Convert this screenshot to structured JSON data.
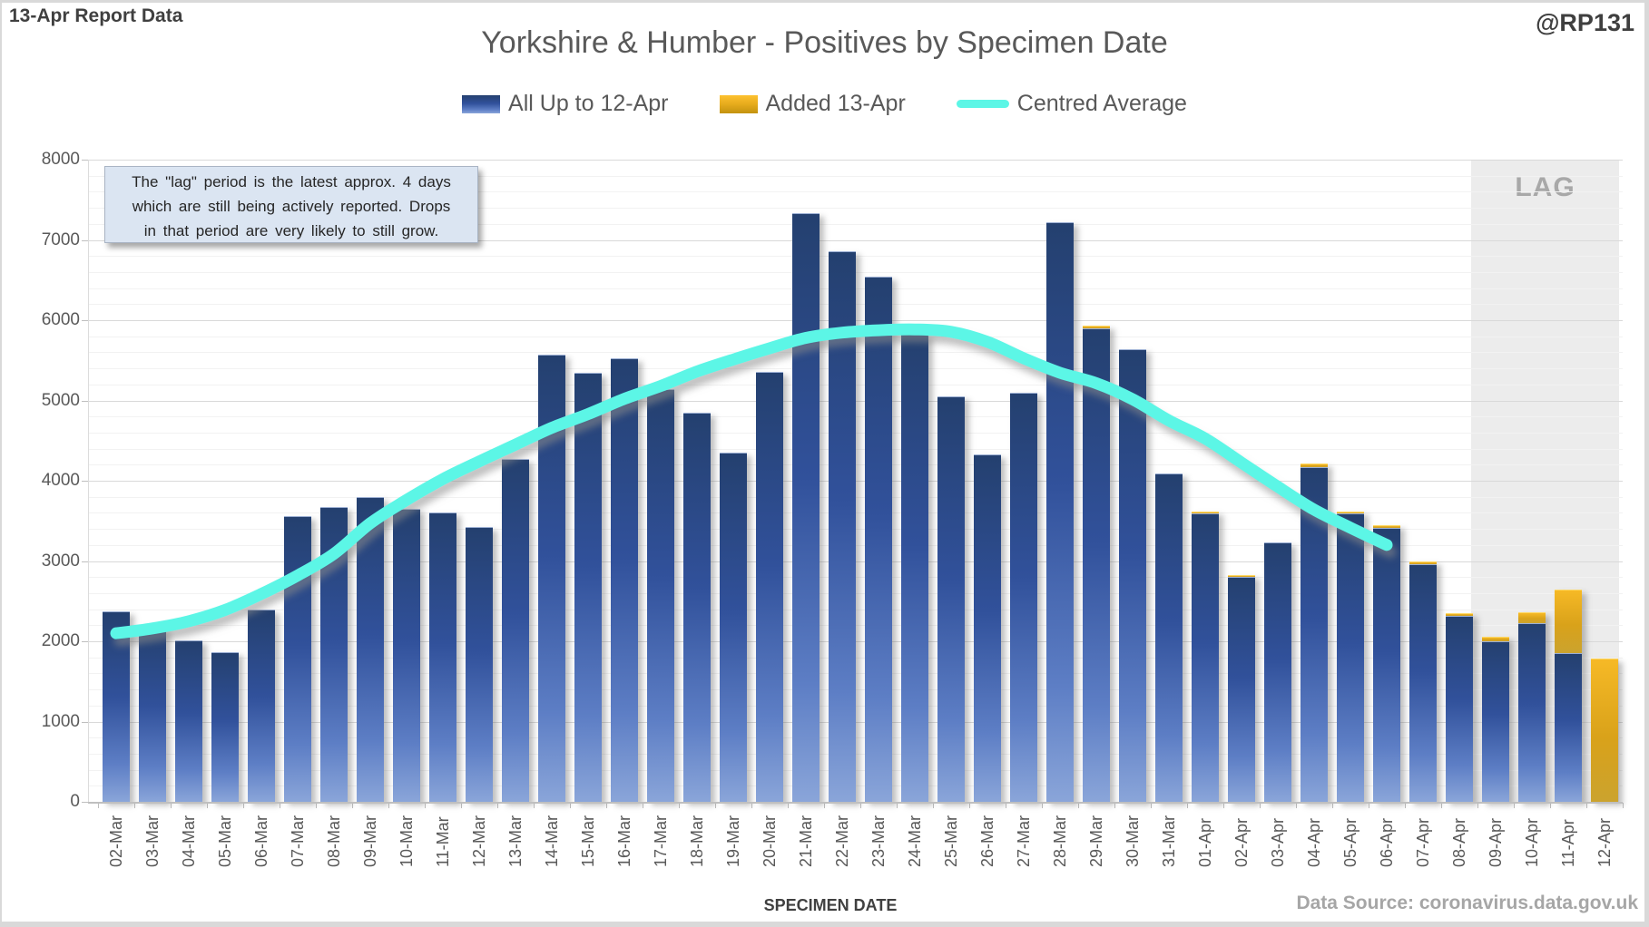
{
  "header": {
    "report_label": "13-Apr Report Data",
    "handle": "@RP131",
    "title": "Yorkshire & Humber - Positives by Specimen Date"
  },
  "legend": [
    {
      "label": "All Up to 12-Apr",
      "swatch": "blue-bar-swatch",
      "color": "#31519b"
    },
    {
      "label": "Added 13-Apr",
      "swatch": "gold-bar-swatch",
      "color": "#e9ad1e"
    },
    {
      "label": "Centred Average",
      "swatch": "cyan-line-swatch",
      "color": "#5cf6e6"
    }
  ],
  "annotation": {
    "lines": [
      "The \"lag\" period is the latest approx. 4 days",
      "which are still being actively reported. Drops",
      "in that period are very likely to still grow."
    ]
  },
  "axis": {
    "x_title": "SPECIMEN DATE",
    "y_ticks": [
      0,
      1000,
      2000,
      3000,
      4000,
      5000,
      6000,
      7000,
      8000
    ]
  },
  "footer": {
    "source": "Data Source: coronavirus.data.gov.uk"
  },
  "chart_data": {
    "type": "bar",
    "title": "Yorkshire & Humber - Positives by Specimen Date",
    "xlabel": "SPECIMEN DATE",
    "ylabel": "",
    "ylim": [
      0,
      8000
    ],
    "grid": "horizontal, minor every 200, major every 1000",
    "legend_position": "top",
    "categories": [
      "02-Mar",
      "03-Mar",
      "04-Mar",
      "05-Mar",
      "06-Mar",
      "07-Mar",
      "08-Mar",
      "09-Mar",
      "10-Mar",
      "11-Mar",
      "12-Mar",
      "13-Mar",
      "14-Mar",
      "15-Mar",
      "16-Mar",
      "17-Mar",
      "18-Mar",
      "19-Mar",
      "20-Mar",
      "21-Mar",
      "22-Mar",
      "23-Mar",
      "24-Mar",
      "25-Mar",
      "26-Mar",
      "27-Mar",
      "28-Mar",
      "29-Mar",
      "30-Mar",
      "31-Mar",
      "01-Apr",
      "02-Apr",
      "03-Apr",
      "04-Apr",
      "05-Apr",
      "06-Apr",
      "07-Apr",
      "08-Apr",
      "09-Apr",
      "10-Apr",
      "11-Apr",
      "12-Apr"
    ],
    "series": [
      {
        "name": "All Up to 12-Apr",
        "type": "bar",
        "stack": "base",
        "color": "#31519b",
        "values": [
          2370,
          2170,
          2010,
          1870,
          2390,
          3560,
          3670,
          3800,
          3650,
          3600,
          3420,
          4270,
          5570,
          5340,
          5520,
          5140,
          4850,
          4350,
          5360,
          7330,
          6860,
          6540,
          5830,
          5050,
          4330,
          5100,
          7220,
          5910,
          5640,
          4090,
          3600,
          2810,
          3230,
          4185,
          3600,
          3425,
          2970,
          2330,
          2010,
          2240,
          1870,
          0
        ]
      },
      {
        "name": "Added 13-Apr",
        "type": "bar",
        "stack": "top",
        "color": "#e9ad1e",
        "values": [
          0,
          0,
          0,
          0,
          0,
          0,
          0,
          0,
          0,
          0,
          0,
          0,
          0,
          0,
          0,
          0,
          0,
          0,
          0,
          0,
          0,
          0,
          0,
          0,
          0,
          0,
          0,
          25,
          0,
          0,
          20,
          20,
          0,
          25,
          20,
          25,
          20,
          20,
          45,
          120,
          770,
          1780
        ]
      },
      {
        "name": "Centred Average",
        "type": "line",
        "color": "#5cf6e6",
        "values": [
          2100,
          2160,
          2250,
          2390,
          2590,
          2820,
          3090,
          3470,
          3760,
          4020,
          4240,
          4450,
          4660,
          4830,
          5020,
          5180,
          5360,
          5510,
          5650,
          5780,
          5845,
          5875,
          5885,
          5855,
          5730,
          5525,
          5345,
          5215,
          5015,
          4750,
          4525,
          4225,
          3925,
          3640,
          3415,
          3200,
          null,
          null,
          null,
          null,
          null,
          null
        ]
      }
    ],
    "lag_region": {
      "label": "LAG",
      "start": "09-Apr",
      "end": "12-Apr"
    }
  }
}
